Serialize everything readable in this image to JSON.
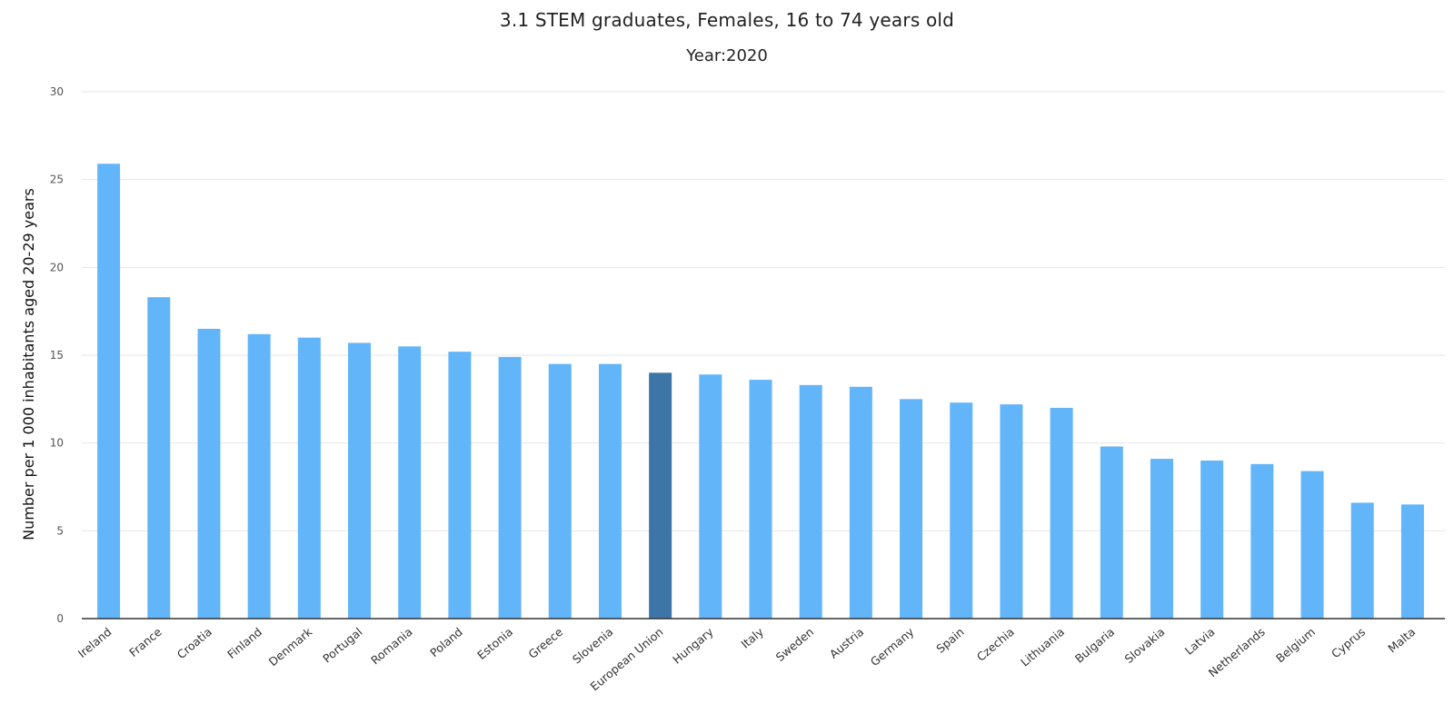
{
  "chart_data": {
    "type": "bar",
    "title": "3.1 STEM graduates, Females, 16 to 74 years old",
    "subtitle": "Year:2020",
    "xlabel": "",
    "ylabel": "Number per 1 000 inhabitants aged 20-29 years",
    "ylim": [
      0,
      30
    ],
    "yticks": [
      0,
      5,
      10,
      15,
      20,
      25,
      30
    ],
    "grid": true,
    "legend": "none",
    "colors": {
      "bar": "#63b5fa",
      "highlight": "#3d76a6",
      "grid": "#e6e6e6",
      "axis": "#333333"
    },
    "highlight_category": "European Union",
    "categories": [
      "Ireland",
      "France",
      "Croatia",
      "Finland",
      "Denmark",
      "Portugal",
      "Romania",
      "Poland",
      "Estonia",
      "Greece",
      "Slovenia",
      "European Union",
      "Hungary",
      "Italy",
      "Sweden",
      "Austria",
      "Germany",
      "Spain",
      "Czechia",
      "Lithuania",
      "Bulgaria",
      "Slovakia",
      "Latvia",
      "Netherlands",
      "Belgium",
      "Cyprus",
      "Malta"
    ],
    "values": [
      25.9,
      18.3,
      16.5,
      16.2,
      16.0,
      15.7,
      15.5,
      15.2,
      14.9,
      14.5,
      14.5,
      14.0,
      13.9,
      13.6,
      13.3,
      13.2,
      12.5,
      12.3,
      12.2,
      12.0,
      9.8,
      9.1,
      9.0,
      8.8,
      8.4,
      6.6,
      6.5
    ]
  }
}
